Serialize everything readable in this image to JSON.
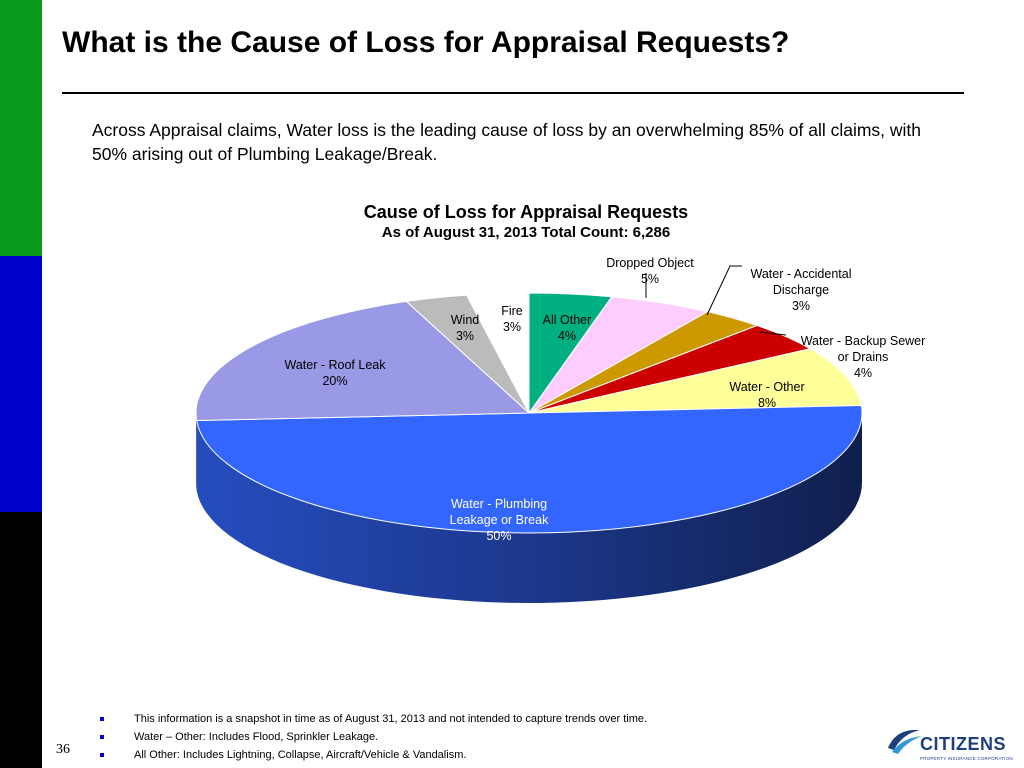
{
  "slide": {
    "title": "What is the Cause of Loss for Appraisal Requests?",
    "intro": "Across Appraisal claims, Water loss is the leading cause of loss by an overwhelming 85% of all claims, with 50% arising out of Plumbing Leakage/Break.",
    "page_number": "36"
  },
  "chart_data": {
    "type": "pie",
    "style": "3d",
    "title": "Cause of Loss for Appraisal Requests",
    "subtitle": "As of August 31, 2013 Total Count: 6,286",
    "slices": [
      {
        "label": [
          "All Other"
        ],
        "value": 4,
        "display": "4%",
        "color": "#00b080"
      },
      {
        "label": [
          "Dropped Object"
        ],
        "value": 5,
        "display": "5%",
        "color": "#ffccff"
      },
      {
        "label": [
          "Water - Accidental",
          "Discharge"
        ],
        "value": 3,
        "display": "3%",
        "color": "#cc9900"
      },
      {
        "label": [
          "Water - Backup Sewer",
          "or Drains"
        ],
        "value": 4,
        "display": "4%",
        "color": "#cc0000"
      },
      {
        "label": [
          "Water - Other"
        ],
        "value": 8,
        "display": "8%",
        "color": "#ffff99"
      },
      {
        "label": [
          "Water - Plumbing",
          "Leakage or Break"
        ],
        "value": 50,
        "display": "50%",
        "color": "#3366ff"
      },
      {
        "label": [
          "Water - Roof Leak"
        ],
        "value": 20,
        "display": "20%",
        "color": "#9999e6"
      },
      {
        "label": [
          "Wind"
        ],
        "value": 3,
        "display": "3%",
        "color": "#bbbbbb"
      },
      {
        "label": [
          "Fire"
        ],
        "value": 3,
        "display": "3%",
        "color": "#ffffff"
      }
    ]
  },
  "notes": [
    "This information is a snapshot in time as of August 31, 2013 and not intended to capture trends over time.",
    "Water – Other: Includes Flood, Sprinkler Leakage.",
    "All Other: Includes Lightning, Collapse, Aircraft/Vehicle & Vandalism."
  ],
  "logo": {
    "word": "CITIZENS",
    "sub": "PROPERTY INSURANCE CORPORATION"
  }
}
